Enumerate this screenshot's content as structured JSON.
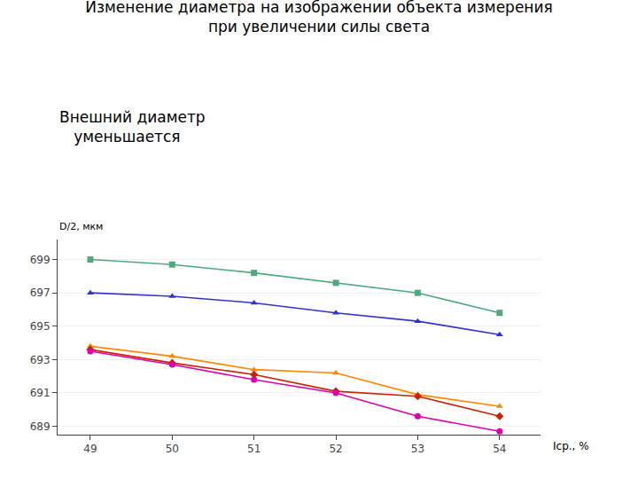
{
  "chart_data": {
    "type": "line",
    "title": "Изменение диаметра на изображении объекта измерения\nпри увеличении силы света",
    "subtitle": "Внешний диаметр\n   уменьшается",
    "xlabel": "Iср., %",
    "ylabel": "D/2, мкм",
    "x": [
      49,
      50,
      51,
      52,
      53,
      54
    ],
    "series": [
      {
        "color": "#4caa7e",
        "marker": "square",
        "values": [
          699.0,
          698.7,
          698.2,
          697.6,
          697.0,
          695.8
        ]
      },
      {
        "color": "#3333cc",
        "marker": "triangle-up",
        "values": [
          697.0,
          696.8,
          696.4,
          695.8,
          695.3,
          694.5
        ]
      },
      {
        "color": "#ff8800",
        "marker": "triangle-up",
        "values": [
          693.8,
          693.2,
          692.4,
          692.2,
          690.9,
          690.2
        ]
      },
      {
        "color": "#cc2200",
        "marker": "diamond",
        "values": [
          693.6,
          692.8,
          692.1,
          691.1,
          690.8,
          689.6
        ]
      },
      {
        "color": "#dd00aa",
        "marker": "circle",
        "values": [
          693.5,
          692.7,
          691.8,
          691.0,
          689.6,
          688.7
        ]
      }
    ],
    "xlim": [
      48.6,
      54.5
    ],
    "ylim": [
      688.5,
      700.2
    ],
    "xticks": [
      49,
      50,
      51,
      52,
      53,
      54
    ],
    "yticks": [
      689,
      691,
      693,
      695,
      697,
      699
    ],
    "grid": "y"
  }
}
